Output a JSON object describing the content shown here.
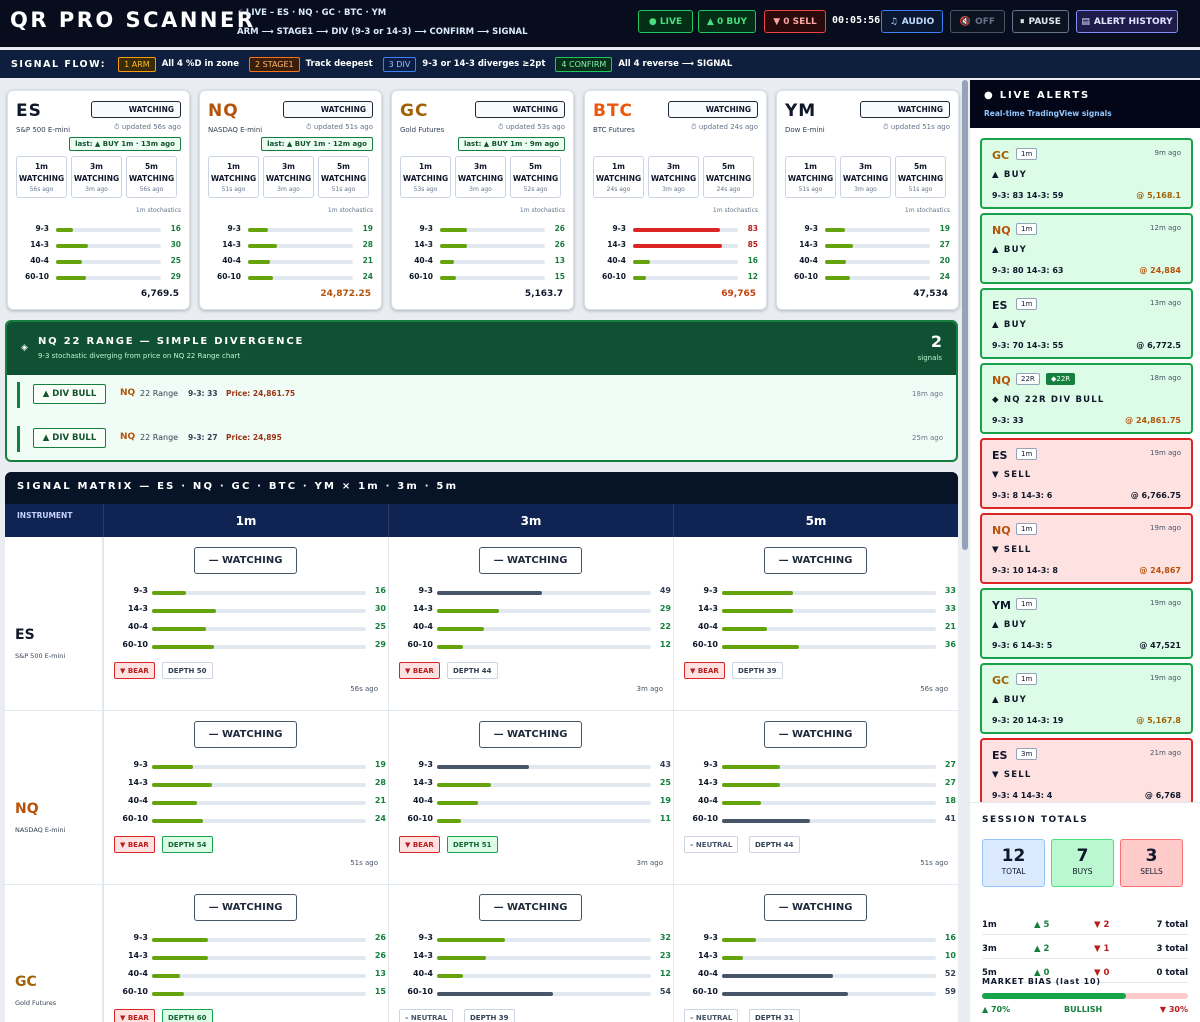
{
  "header": {
    "brand": "QR PRO SCANNER",
    "sub_line1": "⚡ LIVE – ES · NQ · GC · BTC · YM",
    "sub_line2": "ARM ⟶ STAGE1 ⟶ DIV (9-3 or 14-3) ⟶ CONFIRM ⟶ SIGNAL",
    "live_label": "● LIVE",
    "buy_label": "▲ 0 BUY",
    "sell_label": "▼ 0 SELL",
    "clock": "00:05:56",
    "audio_label": "AUDIO",
    "off_label": "OFF",
    "pause_label": "PAUSE",
    "history_label": "ALERT HISTORY"
  },
  "flow": {
    "label": "SIGNAL FLOW:",
    "steps": [
      {
        "chip": "1 ARM",
        "text": "All 4 %D in zone"
      },
      {
        "chip": "2 STAGE1",
        "text": "Track deepest"
      },
      {
        "chip": "3 DIV",
        "text": "9-3 or 14-3 diverges ≥2pt"
      },
      {
        "chip": "4 CONFIRM",
        "text": "All 4 reverse ⟶ SIGNAL"
      }
    ]
  },
  "cards": [
    {
      "sym": "ES",
      "name": "S&P 500 E-mini",
      "status": "WATCHING",
      "updated": "⏱ updated 56s ago",
      "last": "last: ▲ BUY 1m · 13m ago",
      "color": "#0f172a",
      "tfs": [
        {
          "tf": "1m",
          "st": "WATCHING",
          "ago": "56s ago"
        },
        {
          "tf": "3m",
          "st": "WATCHING",
          "ago": "3m ago"
        },
        {
          "tf": "5m",
          "st": "WATCHING",
          "ago": "56s ago"
        }
      ],
      "stoch_label": "1m stochastics",
      "bars": [
        [
          "9-3",
          16
        ],
        [
          "14-3",
          30
        ],
        [
          "40-4",
          25
        ],
        [
          "60-10",
          29
        ]
      ],
      "price": "6,769.5"
    },
    {
      "sym": "NQ",
      "name": "NASDAQ E-mini",
      "status": "WATCHING",
      "updated": "⏱ updated 51s ago",
      "last": "last: ▲ BUY 1m · 12m ago",
      "color": "#b45309",
      "tfs": [
        {
          "tf": "1m",
          "st": "WATCHING",
          "ago": "51s ago"
        },
        {
          "tf": "3m",
          "st": "WATCHING",
          "ago": "3m ago"
        },
        {
          "tf": "5m",
          "st": "WATCHING",
          "ago": "51s ago"
        }
      ],
      "stoch_label": "1m stochastics",
      "bars": [
        [
          "9-3",
          19
        ],
        [
          "14-3",
          28
        ],
        [
          "40-4",
          21
        ],
        [
          "60-10",
          24
        ]
      ],
      "price": "24,872.25"
    },
    {
      "sym": "GC",
      "name": "Gold Futures",
      "status": "WATCHING",
      "updated": "⏱ updated 53s ago",
      "last": "last: ▲ BUY 1m · 9m ago",
      "color": "#a16207",
      "tfs": [
        {
          "tf": "1m",
          "st": "WATCHING",
          "ago": "53s ago"
        },
        {
          "tf": "3m",
          "st": "WATCHING",
          "ago": "3m ago"
        },
        {
          "tf": "5m",
          "st": "WATCHING",
          "ago": "52s ago"
        }
      ],
      "stoch_label": "1m stochastics",
      "bars": [
        [
          "9-3",
          26
        ],
        [
          "14-3",
          26
        ],
        [
          "40-4",
          13
        ],
        [
          "60-10",
          15
        ]
      ],
      "price": "5,163.7"
    },
    {
      "sym": "BTC",
      "name": "BTC Futures",
      "status": "WATCHING",
      "updated": "⏱ updated 24s ago",
      "last": "",
      "color": "#ea580c",
      "tfs": [
        {
          "tf": "1m",
          "st": "WATCHING",
          "ago": "24s ago"
        },
        {
          "tf": "3m",
          "st": "WATCHING",
          "ago": "3m ago"
        },
        {
          "tf": "5m",
          "st": "WATCHING",
          "ago": "24s ago"
        }
      ],
      "stoch_label": "1m stochastics",
      "bars": [
        [
          "9-3",
          83
        ],
        [
          "14-3",
          85
        ],
        [
          "40-4",
          16
        ],
        [
          "60-10",
          12
        ]
      ],
      "price": "69,765"
    },
    {
      "sym": "YM",
      "name": "Dow E-mini",
      "status": "WATCHING",
      "updated": "⏱ updated 51s ago",
      "last": "",
      "color": "#0f172a",
      "tfs": [
        {
          "tf": "1m",
          "st": "WATCHING",
          "ago": "51s ago"
        },
        {
          "tf": "3m",
          "st": "WATCHING",
          "ago": "3m ago"
        },
        {
          "tf": "5m",
          "st": "WATCHING",
          "ago": "51s ago"
        }
      ],
      "stoch_label": "1m stochastics",
      "bars": [
        [
          "9-3",
          19
        ],
        [
          "14-3",
          27
        ],
        [
          "40-4",
          20
        ],
        [
          "60-10",
          24
        ]
      ],
      "price": "47,534"
    }
  ],
  "divergence": {
    "title": "NQ 22 RANGE — SIMPLE DIVERGENCE",
    "subtitle": "9-3 stochastic diverging from price on NQ 22 Range chart",
    "count": "2",
    "count_label": "signals",
    "rows": [
      {
        "btn": "▲ DIV BULL",
        "sym": "NQ",
        "chart": "22 Range",
        "stoch": "9-3: 33",
        "price": "Price: 24,861.75",
        "ago": "18m ago"
      },
      {
        "btn": "▲ DIV BULL",
        "sym": "NQ",
        "chart": "22 Range",
        "stoch": "9-3: 27",
        "price": "Price: 24,895",
        "ago": "25m ago"
      }
    ]
  },
  "matrix": {
    "title": "SIGNAL MATRIX — ES · NQ · GC · BTC · YM × 1m · 3m · 5m",
    "instrument_label": "INSTRUMENT",
    "cols": [
      "1m",
      "3m",
      "5m"
    ],
    "rows": [
      {
        "sym": "ES",
        "name": "S&P 500 E-mini",
        "color": "#0f172a",
        "cells": [
          {
            "status": "— WATCHING",
            "bars": [
              [
                "9-3",
                16
              ],
              [
                "14-3",
                30
              ],
              [
                "40-4",
                25
              ],
              [
                "60-10",
                29
              ]
            ],
            "tag1": "▼ BEAR",
            "tag2": "DEPTH 50",
            "ago": "56s ago",
            "t1": "bear",
            "t2": "plain"
          },
          {
            "status": "— WATCHING",
            "bars": [
              [
                "9-3",
                49
              ],
              [
                "14-3",
                29
              ],
              [
                "40-4",
                22
              ],
              [
                "60-10",
                12
              ]
            ],
            "tag1": "▼ BEAR",
            "tag2": "DEPTH 44",
            "ago": "3m ago",
            "t1": "bear",
            "t2": "plain"
          },
          {
            "status": "— WATCHING",
            "bars": [
              [
                "9-3",
                33
              ],
              [
                "14-3",
                33
              ],
              [
                "40-4",
                21
              ],
              [
                "60-10",
                36
              ]
            ],
            "tag1": "▼ BEAR",
            "tag2": "DEPTH 39",
            "ago": "56s ago",
            "t1": "bear",
            "t2": "plain"
          }
        ]
      },
      {
        "sym": "NQ",
        "name": "NASDAQ E-mini",
        "color": "#b45309",
        "cells": [
          {
            "status": "— WATCHING",
            "bars": [
              [
                "9-3",
                19
              ],
              [
                "14-3",
                28
              ],
              [
                "40-4",
                21
              ],
              [
                "60-10",
                24
              ]
            ],
            "tag1": "▼ BEAR",
            "tag2": "DEPTH 54",
            "ago": "51s ago",
            "t1": "bear",
            "t2": "green"
          },
          {
            "status": "— WATCHING",
            "bars": [
              [
                "9-3",
                43
              ],
              [
                "14-3",
                25
              ],
              [
                "40-4",
                19
              ],
              [
                "60-10",
                11
              ]
            ],
            "tag1": "▼ BEAR",
            "tag2": "DEPTH 51",
            "ago": "3m ago",
            "t1": "bear",
            "t2": "green"
          },
          {
            "status": "— WATCHING",
            "bars": [
              [
                "9-3",
                27
              ],
              [
                "14-3",
                27
              ],
              [
                "40-4",
                18
              ],
              [
                "60-10",
                41
              ]
            ],
            "tag1": "– NEUTRAL",
            "tag2": "DEPTH 44",
            "ago": "51s ago",
            "t1": "plain",
            "t2": "plain"
          }
        ]
      },
      {
        "sym": "GC",
        "name": "Gold Futures",
        "color": "#a16207",
        "cells": [
          {
            "status": "— WATCHING",
            "bars": [
              [
                "9-3",
                26
              ],
              [
                "14-3",
                26
              ],
              [
                "40-4",
                13
              ],
              [
                "60-10",
                15
              ]
            ],
            "tag1": "▼ BEAR",
            "tag2": "DEPTH 60",
            "ago": "",
            "t1": "bear",
            "t2": "green"
          },
          {
            "status": "— WATCHING",
            "bars": [
              [
                "9-3",
                32
              ],
              [
                "14-3",
                23
              ],
              [
                "40-4",
                12
              ],
              [
                "60-10",
                54
              ]
            ],
            "tag1": "– NEUTRAL",
            "tag2": "DEPTH 39",
            "ago": "",
            "t1": "plain",
            "t2": "plain"
          },
          {
            "status": "— WATCHING",
            "bars": [
              [
                "9-3",
                16
              ],
              [
                "14-3",
                10
              ],
              [
                "40-4",
                52
              ],
              [
                "60-10",
                59
              ]
            ],
            "tag1": "– NEUTRAL",
            "tag2": "DEPTH 31",
            "ago": "",
            "t1": "plain",
            "t2": "plain"
          }
        ]
      }
    ]
  },
  "alerts_panel": {
    "title": "● LIVE ALERTS",
    "subtitle": "Real-time TradingView signals",
    "alerts": [
      {
        "sym": "GC",
        "tf": "1m",
        "extra": "",
        "dir": "▲ BUY",
        "stats": "9-3: 83  14-3: 59",
        "price": "@ 5,168.1",
        "ago": "9m ago",
        "kind": "buy",
        "symcolor": "#a16207"
      },
      {
        "sym": "NQ",
        "tf": "1m",
        "extra": "",
        "dir": "▲ BUY",
        "stats": "9-3: 80  14-3: 63",
        "price": "@ 24,884",
        "ago": "12m ago",
        "kind": "buy",
        "symcolor": "#b45309"
      },
      {
        "sym": "ES",
        "tf": "1m",
        "extra": "",
        "dir": "▲ BUY",
        "stats": "9-3: 70  14-3: 55",
        "price": "@ 6,772.5",
        "ago": "13m ago",
        "kind": "buy",
        "symcolor": "#0f172a"
      },
      {
        "sym": "NQ",
        "tf": "22R",
        "extra": "◆22R",
        "dir": "◆ NQ 22R DIV BULL",
        "stats": "9-3: 33",
        "price": "@ 24,861.75",
        "ago": "18m ago",
        "kind": "buy",
        "symcolor": "#b45309"
      },
      {
        "sym": "ES",
        "tf": "1m",
        "extra": "",
        "dir": "▼ SELL",
        "stats": "9-3: 8  14-3: 6",
        "price": "@ 6,766.75",
        "ago": "19m ago",
        "kind": "sell",
        "symcolor": "#0f172a"
      },
      {
        "sym": "NQ",
        "tf": "1m",
        "extra": "",
        "dir": "▼ SELL",
        "stats": "9-3: 10  14-3: 8",
        "price": "@ 24,867",
        "ago": "19m ago",
        "kind": "sell",
        "symcolor": "#b45309"
      },
      {
        "sym": "YM",
        "tf": "1m",
        "extra": "",
        "dir": "▲ BUY",
        "stats": "9-3: 6  14-3: 5",
        "price": "@ 47,521",
        "ago": "19m ago",
        "kind": "buy",
        "symcolor": "#0f172a"
      },
      {
        "sym": "GC",
        "tf": "1m",
        "extra": "",
        "dir": "▲ BUY",
        "stats": "9-3: 20  14-3: 19",
        "price": "@ 5,167.8",
        "ago": "19m ago",
        "kind": "buy",
        "symcolor": "#a16207"
      },
      {
        "sym": "ES",
        "tf": "3m",
        "extra": "",
        "dir": "▼ SELL",
        "stats": "9-3: 4  14-3: 4",
        "price": "@ 6,768",
        "ago": "21m ago",
        "kind": "sell",
        "symcolor": "#0f172a"
      }
    ]
  },
  "session": {
    "title": "SESSION TOTALS",
    "total": "12",
    "total_label": "TOTAL",
    "buys": "7",
    "buys_label": "BUYS",
    "sells": "3",
    "sells_label": "SELLS",
    "rows": [
      {
        "tf": "1m",
        "up": "▲ 5",
        "down": "▼ 2",
        "tot": "7 total"
      },
      {
        "tf": "3m",
        "up": "▲ 2",
        "down": "▼ 1",
        "tot": "3 total"
      },
      {
        "tf": "5m",
        "up": "▲ 0",
        "down": "▼ 0",
        "tot": "0 total"
      }
    ],
    "bias_title": "MARKET BIAS (last 10)",
    "bias_bull": "▲ 70%",
    "bias_label": "BULLISH",
    "bias_bear": "▼ 30%",
    "bias_fraction": 0.7
  },
  "colors": {
    "buy_bg": "#dcfce7",
    "buy_border": "#16a34a",
    "sell_bg": "#fee2e2",
    "sell_border": "#dc2626",
    "bar_green": "#65a30d",
    "bar_slate": "#475569",
    "bar_red": "#dc2626"
  }
}
